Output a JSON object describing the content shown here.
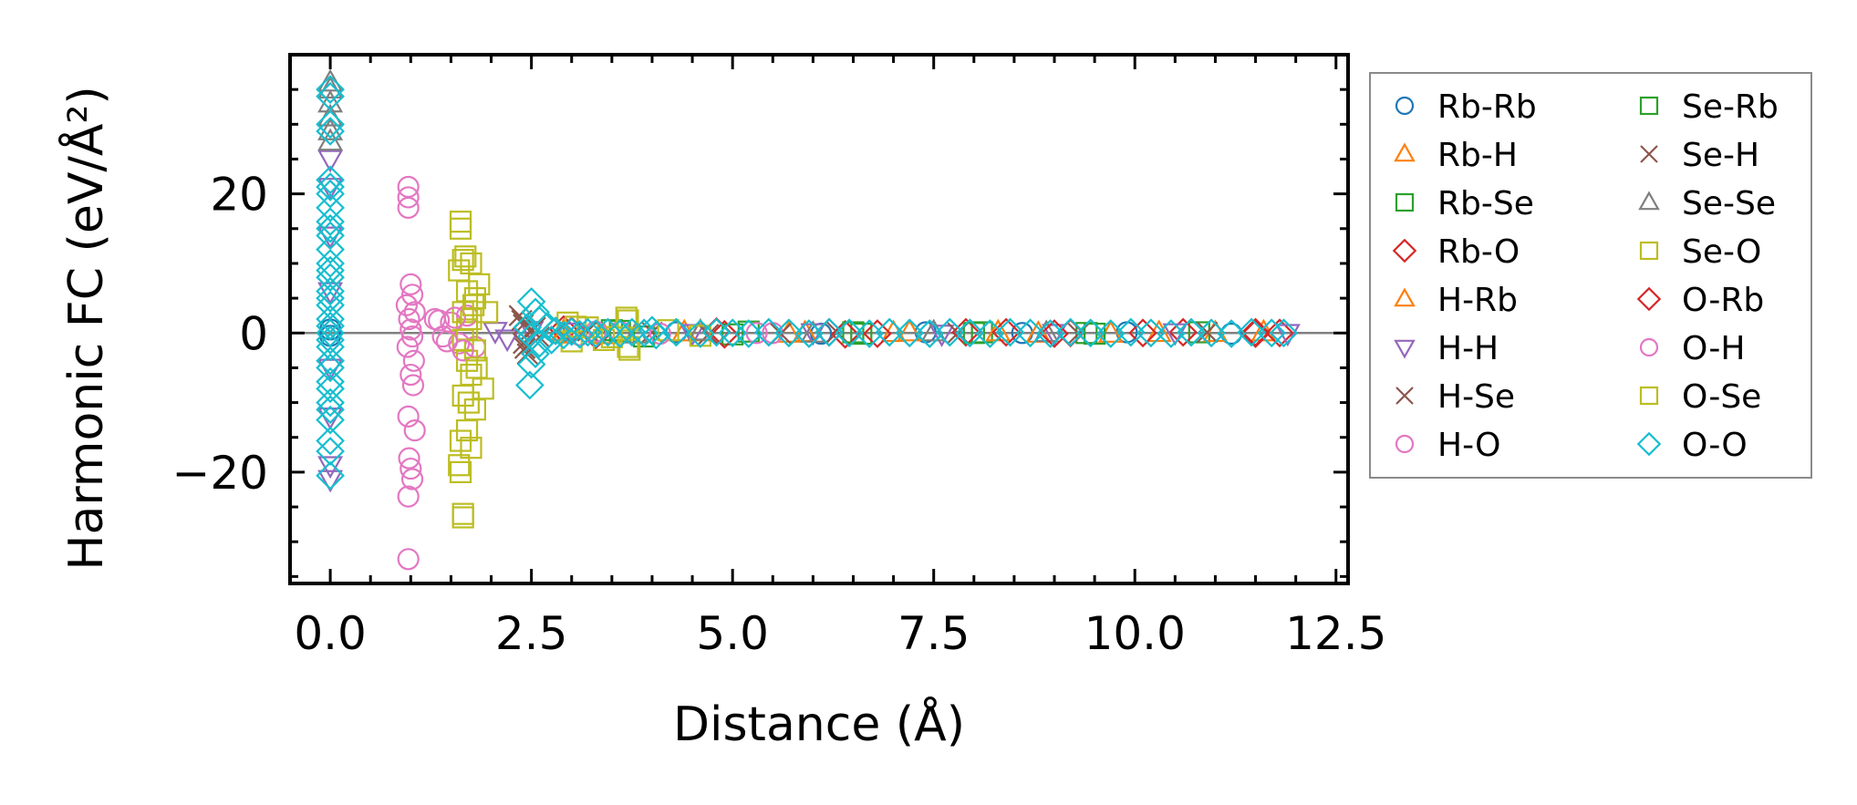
{
  "chart_data": {
    "type": "scatter",
    "xlabel": "Distance (Å)",
    "ylabel": "Harmonic FC (eV/Å²)",
    "xlim": [
      -0.5,
      12.65
    ],
    "ylim": [
      -36,
      40
    ],
    "x_ticks": [
      0.0,
      2.5,
      5.0,
      7.5,
      10.0,
      12.5
    ],
    "x_tick_labels": [
      "0.0",
      "2.5",
      "5.0",
      "7.5",
      "10.0",
      "12.5"
    ],
    "y_ticks": [
      -20,
      0,
      20
    ],
    "y_tick_labels": [
      "−20",
      "0",
      "20"
    ],
    "reference_line": {
      "y": 0,
      "color": "#808080"
    },
    "grid": false,
    "legend": {
      "placement": "outside-right",
      "columns": 2
    },
    "series": [
      {
        "name": "Rb-Rb",
        "marker": "circle",
        "color": "#1f77b4",
        "points": [
          [
            0.0,
            0.5
          ],
          [
            0.0,
            -0.4
          ],
          [
            4.3,
            0.1
          ],
          [
            6.1,
            -0.1
          ],
          [
            7.4,
            0.1
          ],
          [
            8.6,
            0.0
          ],
          [
            9.9,
            0.1
          ],
          [
            11.2,
            -0.1
          ]
        ]
      },
      {
        "name": "Rb-H",
        "marker": "triangle-up",
        "color": "#ff7f0e",
        "points": [
          [
            2.9,
            0.2
          ],
          [
            3.4,
            -0.3
          ],
          [
            4.6,
            0.1
          ],
          [
            5.9,
            0.0
          ],
          [
            7.2,
            0.1
          ],
          [
            8.8,
            -0.1
          ],
          [
            10.3,
            0.0
          ],
          [
            11.6,
            0.1
          ]
        ]
      },
      {
        "name": "Rb-Se",
        "marker": "square",
        "color": "#2ca02c",
        "points": [
          [
            3.5,
            0.4
          ],
          [
            3.9,
            -0.5
          ],
          [
            5.2,
            0.2
          ],
          [
            6.6,
            -0.1
          ],
          [
            8.1,
            0.1
          ],
          [
            9.4,
            0.0
          ],
          [
            10.8,
            0.1
          ]
        ]
      },
      {
        "name": "Rb-O",
        "marker": "diamond",
        "color": "#d62728",
        "points": [
          [
            2.9,
            0.5
          ],
          [
            3.3,
            -0.3
          ],
          [
            4.8,
            0.2
          ],
          [
            6.4,
            -0.2
          ],
          [
            7.9,
            0.1
          ],
          [
            9.2,
            0.0
          ],
          [
            10.6,
            0.1
          ],
          [
            11.5,
            -0.1
          ],
          [
            11.8,
            0.0
          ]
        ]
      },
      {
        "name": "H-Rb",
        "marker": "triangle-up",
        "color": "#ff7f0e",
        "points": [
          [
            2.9,
            -0.2
          ],
          [
            4.4,
            0.1
          ],
          [
            5.7,
            -0.1
          ],
          [
            7.0,
            0.0
          ],
          [
            8.3,
            0.1
          ],
          [
            9.7,
            -0.1
          ],
          [
            11.0,
            0.0
          ]
        ]
      },
      {
        "name": "H-H",
        "marker": "triangle-down",
        "color": "#9467bd",
        "points": [
          [
            0.0,
            25
          ],
          [
            0.0,
            21
          ],
          [
            0.0,
            14
          ],
          [
            0.0,
            6
          ],
          [
            0.0,
            -5
          ],
          [
            0.0,
            -12
          ],
          [
            0.0,
            -19
          ],
          [
            0.0,
            -21
          ],
          [
            2.05,
            0.3
          ],
          [
            2.2,
            -0.8
          ],
          [
            2.5,
            0.4
          ],
          [
            3.0,
            0.2
          ],
          [
            4.5,
            0.0
          ],
          [
            6.0,
            0.1
          ],
          [
            7.6,
            -0.1
          ],
          [
            9.0,
            0.0
          ],
          [
            10.5,
            0.1
          ],
          [
            11.9,
            0.0
          ]
        ]
      },
      {
        "name": "H-Se",
        "marker": "x",
        "color": "#8c564b",
        "points": [
          [
            2.35,
            2.5
          ],
          [
            2.4,
            1.2
          ],
          [
            2.4,
            -1.5
          ],
          [
            2.45,
            -3.0
          ],
          [
            2.55,
            0.8
          ],
          [
            2.6,
            -0.6
          ],
          [
            3.2,
            0.3
          ],
          [
            4.7,
            -0.2
          ],
          [
            6.3,
            0.1
          ],
          [
            7.8,
            0.0
          ],
          [
            9.3,
            -0.1
          ],
          [
            10.9,
            0.1
          ]
        ]
      },
      {
        "name": "H-O",
        "marker": "circle",
        "color": "#e377c2",
        "points": [
          [
            0.97,
            21
          ],
          [
            0.97,
            19.5
          ],
          [
            0.97,
            18
          ],
          [
            1.0,
            7
          ],
          [
            1.02,
            5.5
          ],
          [
            0.95,
            4
          ],
          [
            1.05,
            3
          ],
          [
            0.98,
            2
          ],
          [
            1.0,
            0.5
          ],
          [
            1.02,
            -0.5
          ],
          [
            0.96,
            -2
          ],
          [
            1.04,
            -4
          ],
          [
            1.0,
            -6
          ],
          [
            1.03,
            -7.5
          ],
          [
            0.97,
            -12
          ],
          [
            1.05,
            -14
          ],
          [
            0.98,
            -18
          ],
          [
            1.0,
            -19.5
          ],
          [
            1.02,
            -21
          ],
          [
            0.97,
            -23.5
          ],
          [
            0.97,
            -32.5
          ],
          [
            1.3,
            2
          ],
          [
            1.4,
            -0.5
          ],
          [
            1.5,
            1.5
          ],
          [
            1.6,
            -1.5
          ],
          [
            1.7,
            2.5
          ],
          [
            1.8,
            -2
          ],
          [
            3.1,
            -0.3
          ],
          [
            3.6,
            0.2
          ],
          [
            5.5,
            0.0
          ]
        ]
      },
      {
        "name": "Se-Rb",
        "marker": "square",
        "color": "#2ca02c",
        "points": [
          [
            3.6,
            0.3
          ],
          [
            5.0,
            -0.2
          ],
          [
            6.5,
            0.1
          ],
          [
            8.0,
            0.0
          ],
          [
            9.5,
            -0.1
          ]
        ]
      },
      {
        "name": "Se-H",
        "marker": "x",
        "color": "#8c564b",
        "points": [
          [
            2.38,
            1.8
          ],
          [
            2.42,
            -2.2
          ],
          [
            2.5,
            0.5
          ],
          [
            4.0,
            0.1
          ],
          [
            5.6,
            -0.1
          ]
        ]
      },
      {
        "name": "Se-Se",
        "marker": "triangle-up",
        "color": "#7f7f7f",
        "points": [
          [
            0.0,
            36
          ],
          [
            0.0,
            35
          ],
          [
            0.0,
            33
          ],
          [
            0.0,
            31
          ],
          [
            0.0,
            29
          ],
          [
            0.0,
            27.5
          ],
          [
            3.8,
            -0.2
          ],
          [
            4.6,
            0.2
          ],
          [
            6.0,
            -0.1
          ],
          [
            7.5,
            0.1
          ],
          [
            8.9,
            0.0
          ]
        ]
      },
      {
        "name": "Se-O",
        "marker": "square",
        "color": "#bcbd22",
        "points": [
          [
            1.62,
            16
          ],
          [
            1.62,
            15
          ],
          [
            1.65,
            10.5
          ],
          [
            1.75,
            10
          ],
          [
            1.6,
            9
          ],
          [
            1.7,
            6
          ],
          [
            1.8,
            5
          ],
          [
            1.65,
            3
          ],
          [
            1.75,
            2
          ],
          [
            1.7,
            0.5
          ],
          [
            1.65,
            -1
          ],
          [
            1.8,
            -2.5
          ],
          [
            1.7,
            -4
          ],
          [
            1.75,
            -6
          ],
          [
            1.65,
            -9
          ],
          [
            1.8,
            -11
          ],
          [
            1.7,
            -14
          ],
          [
            1.62,
            -15.5
          ],
          [
            1.75,
            -16.5
          ],
          [
            1.6,
            -19
          ],
          [
            1.62,
            -20
          ],
          [
            1.65,
            -26
          ],
          [
            1.65,
            -26.5
          ],
          [
            1.85,
            7
          ],
          [
            1.9,
            -8
          ],
          [
            1.95,
            3
          ],
          [
            2.95,
            1.5
          ],
          [
            3.0,
            -1.2
          ],
          [
            3.2,
            0.8
          ],
          [
            3.5,
            -0.6
          ],
          [
            3.7,
            1.8
          ],
          [
            3.7,
            -2
          ],
          [
            4.2,
            0.4
          ],
          [
            4.6,
            -0.4
          ]
        ]
      },
      {
        "name": "O-Rb",
        "marker": "diamond",
        "color": "#d62728",
        "points": [
          [
            3.0,
            0.3
          ],
          [
            4.9,
            -0.2
          ],
          [
            6.2,
            0.1
          ],
          [
            6.8,
            -0.1
          ],
          [
            8.4,
            0.1
          ],
          [
            9.0,
            -0.1
          ],
          [
            10.1,
            0.0
          ],
          [
            11.5,
            0.1
          ]
        ]
      },
      {
        "name": "O-H",
        "marker": "circle",
        "color": "#e377c2",
        "points": [
          [
            1.35,
            1.8
          ],
          [
            1.45,
            -1.2
          ],
          [
            1.55,
            2.2
          ],
          [
            1.65,
            -2.5
          ],
          [
            3.3,
            0.2
          ],
          [
            4.1,
            -0.1
          ],
          [
            5.3,
            0.0
          ]
        ]
      },
      {
        "name": "O-Se",
        "marker": "square",
        "color": "#bcbd22",
        "points": [
          [
            1.68,
            11
          ],
          [
            1.72,
            -10
          ],
          [
            1.78,
            4
          ],
          [
            1.82,
            -5
          ],
          [
            3.05,
            0.9
          ],
          [
            3.4,
            -1.0
          ],
          [
            3.68,
            2.2
          ],
          [
            3.72,
            -2.4
          ]
        ]
      },
      {
        "name": "O-O",
        "marker": "diamond",
        "color": "#17becf",
        "points": [
          [
            0.0,
            35
          ],
          [
            0.0,
            34
          ],
          [
            0.0,
            30
          ],
          [
            0.0,
            29
          ],
          [
            0.0,
            22
          ],
          [
            0.0,
            21
          ],
          [
            0.0,
            20
          ],
          [
            0.0,
            18
          ],
          [
            0.0,
            16
          ],
          [
            0.0,
            15
          ],
          [
            0.0,
            14
          ],
          [
            0.0,
            12
          ],
          [
            0.0,
            10
          ],
          [
            0.0,
            9
          ],
          [
            0.0,
            8
          ],
          [
            0.0,
            6
          ],
          [
            0.0,
            5
          ],
          [
            0.0,
            4
          ],
          [
            0.0,
            2
          ],
          [
            0.0,
            1
          ],
          [
            0.0,
            0
          ],
          [
            0.0,
            -1
          ],
          [
            0.0,
            -2
          ],
          [
            0.0,
            -4
          ],
          [
            0.0,
            -5
          ],
          [
            0.0,
            -7
          ],
          [
            0.0,
            -8
          ],
          [
            0.0,
            -10
          ],
          [
            0.0,
            -11
          ],
          [
            0.0,
            -12.5
          ],
          [
            0.0,
            -15.5
          ],
          [
            0.0,
            -17
          ],
          [
            0.0,
            -20.5
          ],
          [
            2.5,
            4.5
          ],
          [
            2.55,
            3
          ],
          [
            2.6,
            1.8
          ],
          [
            2.45,
            0.8
          ],
          [
            2.5,
            -0.5
          ],
          [
            2.6,
            -1.5
          ],
          [
            2.55,
            -3
          ],
          [
            2.5,
            -4.5
          ],
          [
            2.48,
            -7.5
          ],
          [
            2.7,
            1
          ],
          [
            2.75,
            -1
          ],
          [
            2.8,
            0.3
          ],
          [
            2.9,
            -0.3
          ],
          [
            3.0,
            0.2
          ],
          [
            3.1,
            -0.2
          ],
          [
            3.2,
            0.1
          ],
          [
            3.3,
            -0.1
          ],
          [
            3.45,
            0.1
          ],
          [
            3.6,
            -0.1
          ],
          [
            3.75,
            0.1
          ],
          [
            3.9,
            0.0
          ],
          [
            4.0,
            0.4
          ],
          [
            4.05,
            -0.3
          ],
          [
            4.3,
            0.1
          ],
          [
            4.6,
            -0.1
          ],
          [
            4.8,
            0.1
          ],
          [
            5.0,
            0.0
          ],
          [
            5.2,
            -0.1
          ],
          [
            5.45,
            0.1
          ],
          [
            5.7,
            0.0
          ],
          [
            5.95,
            -0.1
          ],
          [
            6.2,
            0.1
          ],
          [
            6.45,
            0.0
          ],
          [
            6.7,
            -0.1
          ],
          [
            6.95,
            0.1
          ],
          [
            7.2,
            0.0
          ],
          [
            7.45,
            -0.1
          ],
          [
            7.7,
            0.1
          ],
          [
            7.95,
            0.0
          ],
          [
            8.2,
            -0.1
          ],
          [
            8.45,
            0.1
          ],
          [
            8.7,
            0.0
          ],
          [
            8.95,
            -0.1
          ],
          [
            9.2,
            0.1
          ],
          [
            9.45,
            0.0
          ],
          [
            9.7,
            -0.1
          ],
          [
            9.95,
            0.1
          ],
          [
            10.2,
            0.0
          ],
          [
            10.45,
            -0.1
          ],
          [
            10.7,
            0.1
          ],
          [
            10.95,
            0.0
          ],
          [
            11.2,
            -0.1
          ],
          [
            11.45,
            0.1
          ],
          [
            11.7,
            0.0
          ],
          [
            11.85,
            0.0
          ]
        ]
      }
    ]
  }
}
